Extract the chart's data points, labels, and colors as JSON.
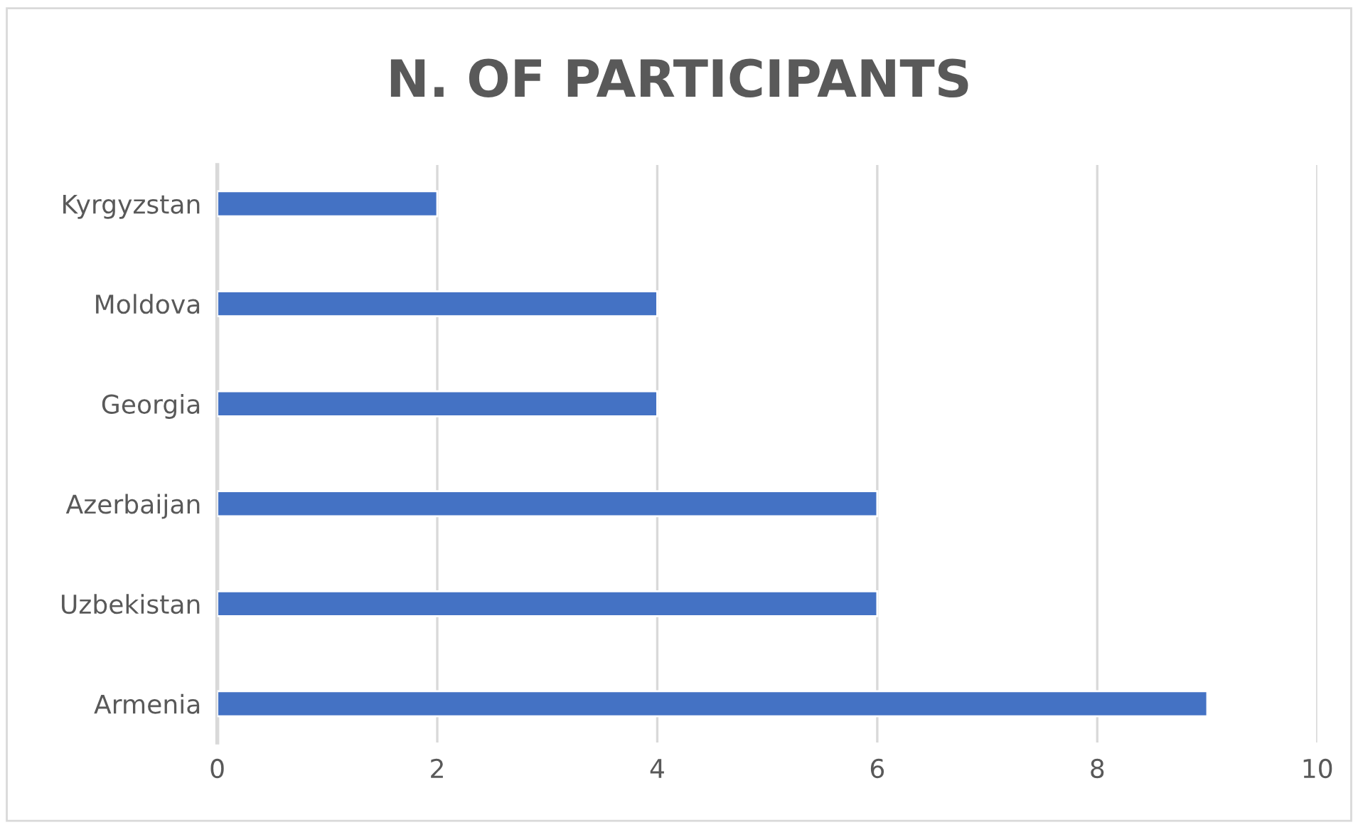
{
  "chart_data": {
    "type": "bar",
    "orientation": "horizontal",
    "title": "N. OF PARTICIPANTS",
    "categories": [
      "Kyrgyzstan",
      "Moldova",
      "Georgia",
      "Azerbaijan",
      "Uzbekistan",
      "Armenia"
    ],
    "values": [
      2,
      4,
      4,
      6,
      6,
      9
    ],
    "color": "#4472c4",
    "xlim": [
      0,
      10
    ],
    "xticks": [
      0,
      2,
      4,
      6,
      8,
      10
    ],
    "grid": "x"
  }
}
